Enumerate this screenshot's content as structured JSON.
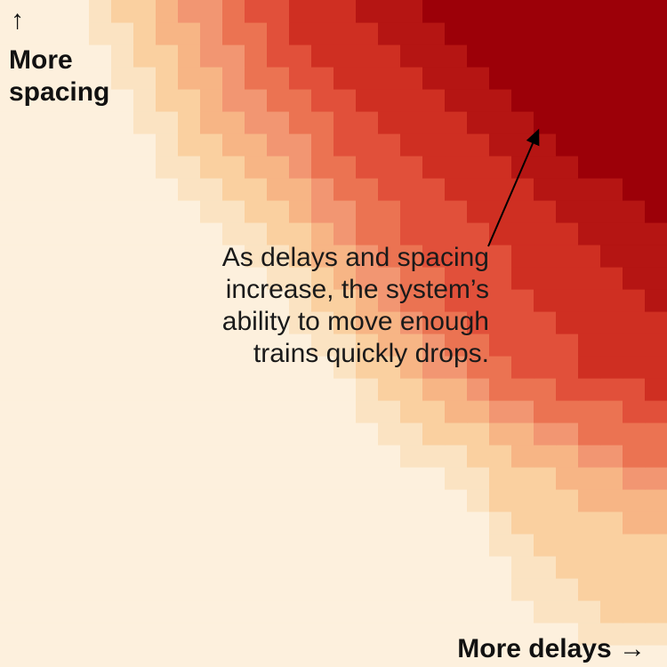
{
  "chart_data": {
    "type": "heatmap",
    "title": "",
    "xlabel": "More delays",
    "ylabel": "More spacing",
    "x_direction": "increasing to the right",
    "y_direction": "increasing upward",
    "grid": false,
    "legend": "none",
    "color_scale": [
      "#fdf0dd",
      "#fbe3c2",
      "#fad0a0",
      "#f7b585",
      "#f29672",
      "#eb7352",
      "#e1503a",
      "#cf2f22",
      "#b51513",
      "#9c0008"
    ],
    "levels": [
      [
        0,
        0,
        0,
        0,
        0,
        0,
        0,
        0,
        0,
        0,
        0,
        0,
        0,
        0,
        0,
        0,
        0,
        0,
        0,
        0,
        0,
        0,
        0,
        0,
        0,
        0,
        0,
        0,
        0,
        0
      ],
      [
        0,
        0,
        0,
        0,
        0,
        0,
        0,
        0,
        0,
        0,
        0,
        0,
        0,
        0,
        0,
        0,
        0,
        0,
        0,
        0,
        0,
        0,
        0,
        0,
        0,
        0,
        1,
        1,
        1,
        1
      ],
      [
        0,
        0,
        0,
        0,
        0,
        0,
        0,
        0,
        0,
        0,
        0,
        0,
        0,
        0,
        0,
        0,
        0,
        0,
        0,
        0,
        0,
        0,
        0,
        0,
        1,
        1,
        1,
        2,
        2,
        2
      ],
      [
        0,
        0,
        0,
        0,
        0,
        0,
        0,
        0,
        0,
        0,
        0,
        0,
        0,
        0,
        0,
        0,
        0,
        0,
        0,
        0,
        0,
        0,
        0,
        1,
        1,
        1,
        2,
        2,
        2,
        2
      ],
      [
        0,
        0,
        0,
        0,
        0,
        0,
        0,
        0,
        0,
        0,
        0,
        0,
        0,
        0,
        0,
        0,
        0,
        0,
        0,
        0,
        0,
        0,
        0,
        1,
        1,
        2,
        2,
        2,
        2,
        2
      ],
      [
        0,
        0,
        0,
        0,
        0,
        0,
        0,
        0,
        0,
        0,
        0,
        0,
        0,
        0,
        0,
        0,
        0,
        0,
        0,
        0,
        0,
        0,
        1,
        1,
        2,
        2,
        2,
        2,
        2,
        2
      ],
      [
        0,
        0,
        0,
        0,
        0,
        0,
        0,
        0,
        0,
        0,
        0,
        0,
        0,
        0,
        0,
        0,
        0,
        0,
        0,
        0,
        0,
        0,
        1,
        2,
        2,
        2,
        2,
        2,
        3,
        3
      ],
      [
        0,
        0,
        0,
        0,
        0,
        0,
        0,
        0,
        0,
        0,
        0,
        0,
        0,
        0,
        0,
        0,
        0,
        0,
        0,
        0,
        0,
        1,
        2,
        2,
        2,
        2,
        3,
        3,
        3,
        3
      ],
      [
        0,
        0,
        0,
        0,
        0,
        0,
        0,
        0,
        0,
        0,
        0,
        0,
        0,
        0,
        0,
        0,
        0,
        0,
        0,
        0,
        1,
        1,
        2,
        2,
        2,
        3,
        3,
        3,
        4,
        4
      ],
      [
        0,
        0,
        0,
        0,
        0,
        0,
        0,
        0,
        0,
        0,
        0,
        0,
        0,
        0,
        0,
        0,
        0,
        0,
        1,
        1,
        1,
        2,
        2,
        3,
        3,
        3,
        4,
        4,
        5,
        5
      ],
      [
        0,
        0,
        0,
        0,
        0,
        0,
        0,
        0,
        0,
        0,
        0,
        0,
        0,
        0,
        0,
        0,
        0,
        1,
        1,
        2,
        2,
        2,
        3,
        3,
        4,
        4,
        5,
        5,
        5,
        5
      ],
      [
        0,
        0,
        0,
        0,
        0,
        0,
        0,
        0,
        0,
        0,
        0,
        0,
        0,
        0,
        0,
        0,
        1,
        1,
        2,
        2,
        3,
        3,
        4,
        4,
        5,
        5,
        5,
        5,
        6,
        6
      ],
      [
        0,
        0,
        0,
        0,
        0,
        0,
        0,
        0,
        0,
        0,
        0,
        0,
        0,
        0,
        0,
        0,
        1,
        2,
        2,
        3,
        3,
        4,
        5,
        5,
        5,
        6,
        6,
        6,
        6,
        7
      ],
      [
        0,
        0,
        0,
        0,
        0,
        0,
        0,
        0,
        0,
        0,
        0,
        0,
        0,
        0,
        0,
        1,
        2,
        2,
        3,
        4,
        4,
        5,
        5,
        6,
        6,
        6,
        7,
        7,
        7,
        7
      ],
      [
        0,
        0,
        0,
        0,
        0,
        0,
        0,
        0,
        0,
        0,
        0,
        0,
        0,
        0,
        1,
        1,
        2,
        3,
        3,
        4,
        5,
        5,
        6,
        6,
        6,
        6,
        7,
        7,
        7,
        7
      ],
      [
        0,
        0,
        0,
        0,
        0,
        0,
        0,
        0,
        0,
        0,
        0,
        0,
        0,
        1,
        1,
        2,
        3,
        3,
        4,
        5,
        5,
        6,
        6,
        6,
        6,
        7,
        7,
        7,
        7,
        7
      ],
      [
        0,
        0,
        0,
        0,
        0,
        0,
        0,
        0,
        0,
        0,
        0,
        0,
        0,
        1,
        2,
        2,
        3,
        4,
        5,
        5,
        6,
        6,
        6,
        6,
        7,
        7,
        7,
        7,
        7,
        8
      ],
      [
        0,
        0,
        0,
        0,
        0,
        0,
        0,
        0,
        0,
        0,
        0,
        0,
        1,
        1,
        2,
        3,
        4,
        4,
        5,
        5,
        6,
        6,
        6,
        7,
        7,
        7,
        7,
        7,
        8,
        8
      ],
      [
        0,
        0,
        0,
        0,
        0,
        0,
        0,
        0,
        0,
        0,
        0,
        1,
        1,
        2,
        3,
        3,
        4,
        5,
        5,
        6,
        6,
        6,
        6,
        7,
        7,
        7,
        7,
        8,
        8,
        8
      ],
      [
        0,
        0,
        0,
        0,
        0,
        0,
        0,
        0,
        0,
        0,
        1,
        1,
        2,
        2,
        3,
        4,
        5,
        5,
        6,
        6,
        6,
        6,
        7,
        7,
        7,
        7,
        8,
        8,
        8,
        8
      ],
      [
        0,
        0,
        0,
        0,
        0,
        0,
        0,
        0,
        0,
        1,
        1,
        2,
        2,
        3,
        4,
        4,
        5,
        5,
        6,
        6,
        6,
        7,
        7,
        7,
        7,
        8,
        8,
        8,
        8,
        9
      ],
      [
        0,
        0,
        0,
        0,
        0,
        0,
        0,
        0,
        1,
        1,
        2,
        2,
        3,
        3,
        4,
        5,
        5,
        6,
        6,
        6,
        7,
        7,
        7,
        7,
        8,
        8,
        8,
        8,
        9,
        9
      ],
      [
        0,
        0,
        0,
        0,
        0,
        0,
        0,
        1,
        1,
        2,
        2,
        3,
        3,
        4,
        5,
        5,
        6,
        6,
        6,
        7,
        7,
        7,
        7,
        8,
        8,
        8,
        9,
        9,
        9,
        9
      ],
      [
        0,
        0,
        0,
        0,
        0,
        0,
        0,
        1,
        2,
        2,
        3,
        3,
        4,
        4,
        5,
        6,
        6,
        6,
        7,
        7,
        7,
        7,
        8,
        8,
        8,
        9,
        9,
        9,
        9,
        9
      ],
      [
        0,
        0,
        0,
        0,
        0,
        0,
        1,
        1,
        2,
        3,
        3,
        4,
        4,
        5,
        5,
        6,
        6,
        7,
        7,
        7,
        7,
        8,
        8,
        8,
        9,
        9,
        9,
        9,
        9,
        9
      ],
      [
        0,
        0,
        0,
        0,
        0,
        0,
        1,
        2,
        2,
        3,
        4,
        4,
        5,
        5,
        6,
        6,
        7,
        7,
        7,
        7,
        8,
        8,
        8,
        9,
        9,
        9,
        9,
        9,
        9,
        9
      ],
      [
        0,
        0,
        0,
        0,
        0,
        1,
        1,
        2,
        3,
        3,
        4,
        5,
        5,
        6,
        6,
        7,
        7,
        7,
        7,
        8,
        8,
        8,
        9,
        9,
        9,
        9,
        9,
        9,
        9,
        9
      ],
      [
        0,
        0,
        0,
        0,
        0,
        1,
        2,
        2,
        3,
        4,
        4,
        5,
        6,
        6,
        7,
        7,
        7,
        7,
        8,
        8,
        8,
        9,
        9,
        9,
        9,
        9,
        9,
        9,
        9,
        9
      ],
      [
        0,
        0,
        0,
        0,
        1,
        1,
        2,
        3,
        3,
        4,
        5,
        5,
        6,
        7,
        7,
        7,
        7,
        8,
        8,
        8,
        9,
        9,
        9,
        9,
        9,
        9,
        9,
        9,
        9,
        9
      ],
      [
        0,
        0,
        0,
        0,
        1,
        2,
        2,
        3,
        4,
        4,
        5,
        6,
        6,
        7,
        7,
        7,
        8,
        8,
        8,
        9,
        9,
        9,
        9,
        9,
        9,
        9,
        9,
        9,
        9,
        9
      ]
    ]
  },
  "labels": {
    "y_arrow": "↑",
    "y_label": "More\nspacing",
    "x_label": "More delays →",
    "annotation": "As delays and spacing increase, the system’s ability to move enough trains quickly drops."
  }
}
